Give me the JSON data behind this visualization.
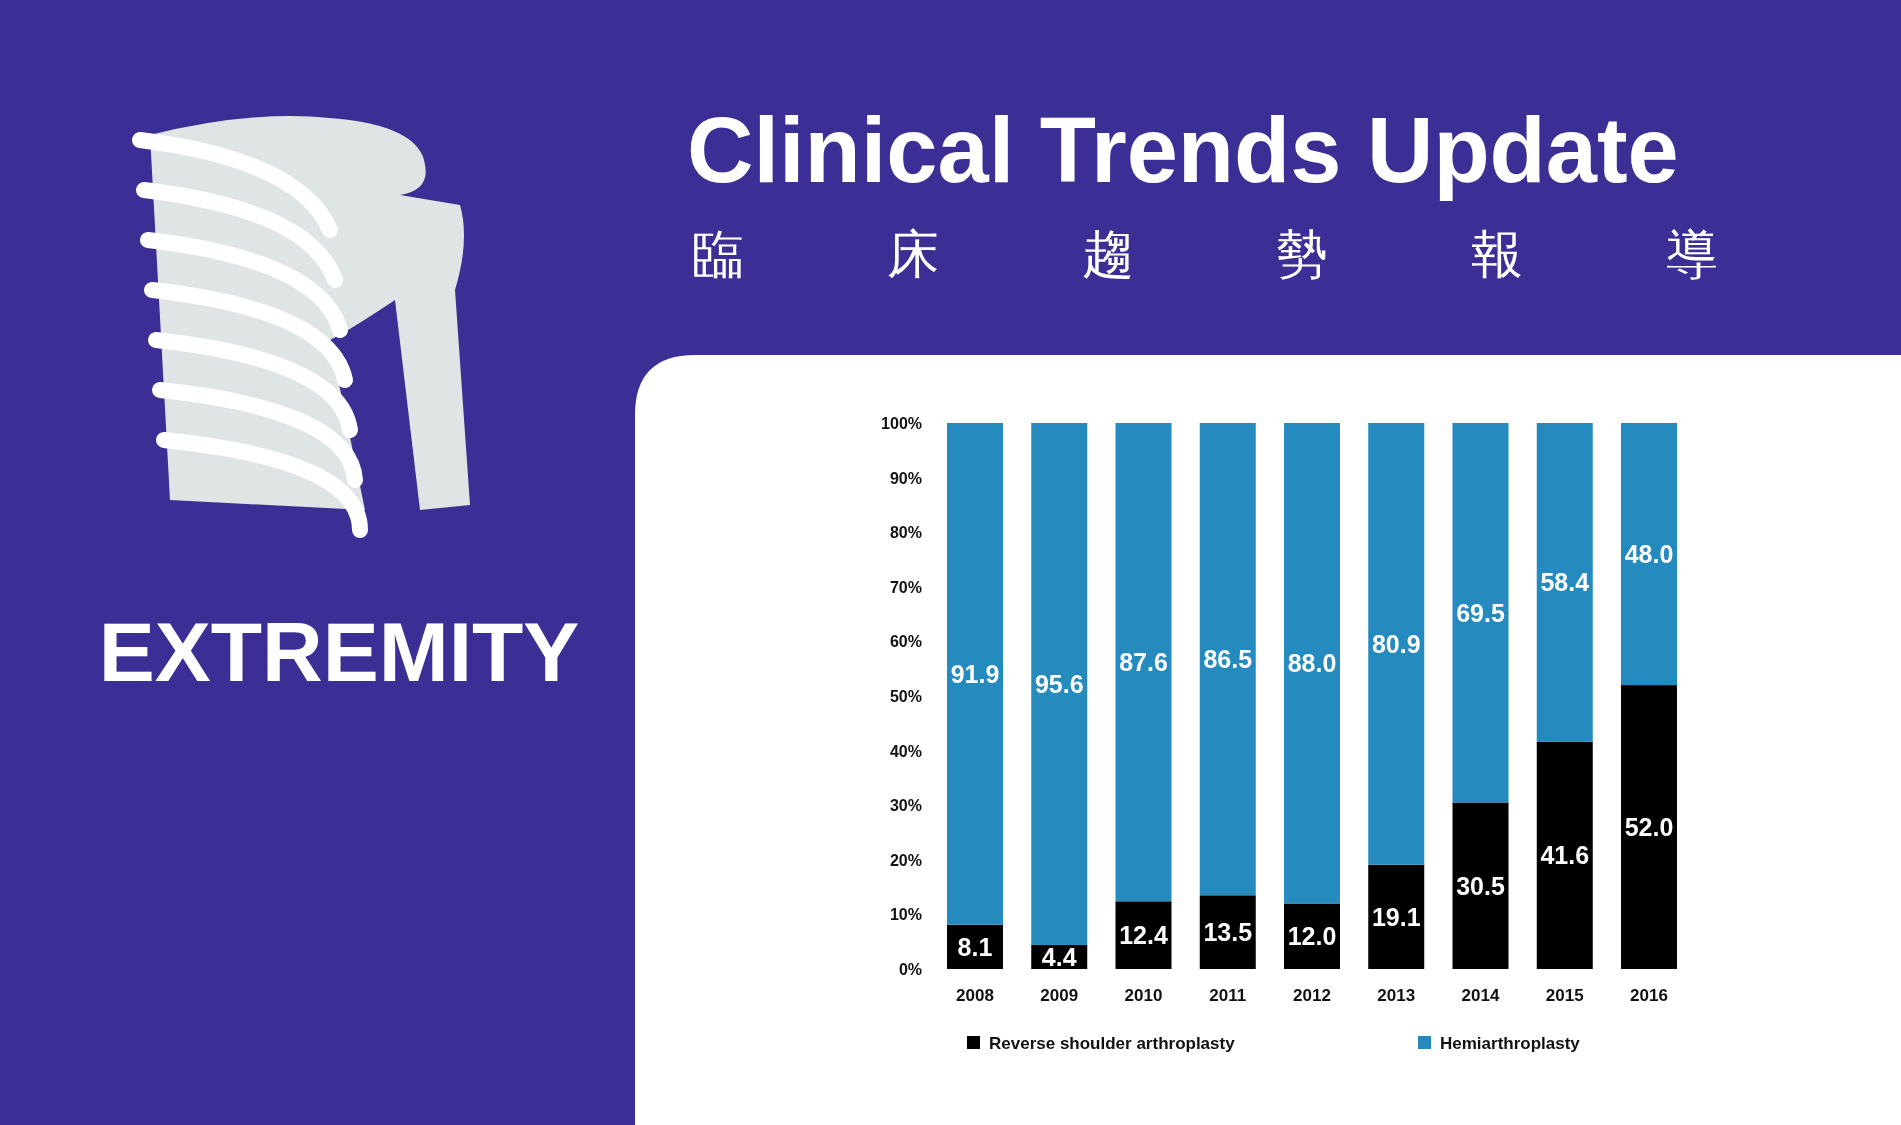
{
  "chart_data": {
    "type": "bar",
    "title": "Clinical Trends Update",
    "subtitle": "臨床趨勢報導",
    "annotations": [
      "EXTREMITY"
    ],
    "categories": [
      "2008",
      "2009",
      "2010",
      "2011",
      "2012",
      "2013",
      "2014",
      "2015",
      "2016"
    ],
    "series": [
      {
        "name": "Reverse shoulder arthroplasty",
        "color": "#000000",
        "values": [
          8.1,
          4.4,
          12.4,
          13.5,
          12.0,
          19.1,
          30.5,
          41.6,
          52.0
        ],
        "value_labels": [
          "8.1",
          "4.4",
          "12.4",
          "13.5",
          "12.0",
          "19.1",
          "30.5",
          "41.6",
          "52.0"
        ]
      },
      {
        "name": "Hemiarthroplasty",
        "color": "#258bbf",
        "values": [
          91.9,
          95.6,
          87.6,
          86.5,
          88.0,
          80.9,
          69.5,
          58.4,
          48.0
        ],
        "value_labels": [
          "91.9",
          "95.6",
          "87.6",
          "86.5",
          "88.0",
          "80.9",
          "69.5",
          "58.4",
          "48.0"
        ]
      }
    ],
    "stacked": true,
    "ylim": [
      0,
      100
    ],
    "yticks": [
      {
        "value": 0,
        "label": "0%"
      },
      {
        "value": 10,
        "label": "10%"
      },
      {
        "value": 20,
        "label": "20%"
      },
      {
        "value": 30,
        "label": "30%"
      },
      {
        "value": 40,
        "label": "40%"
      },
      {
        "value": 50,
        "label": "50%"
      },
      {
        "value": 60,
        "label": "60%"
      },
      {
        "value": 70,
        "label": "70%"
      },
      {
        "value": 80,
        "label": "80%"
      },
      {
        "value": 90,
        "label": "90%"
      },
      {
        "value": 100,
        "label": "100%"
      }
    ],
    "legend": "bottom",
    "grid": false
  }
}
